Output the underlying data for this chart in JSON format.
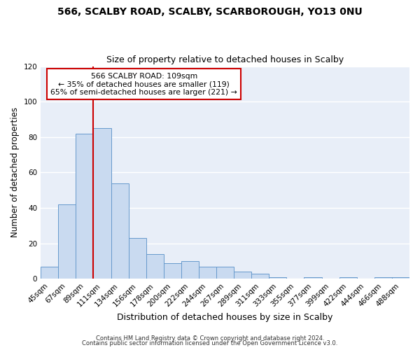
{
  "title": "566, SCALBY ROAD, SCALBY, SCARBOROUGH, YO13 0NU",
  "subtitle": "Size of property relative to detached houses in Scalby",
  "xlabel": "Distribution of detached houses by size in Scalby",
  "ylabel": "Number of detached properties",
  "bar_labels": [
    "45sqm",
    "67sqm",
    "89sqm",
    "111sqm",
    "134sqm",
    "156sqm",
    "178sqm",
    "200sqm",
    "222sqm",
    "244sqm",
    "267sqm",
    "289sqm",
    "311sqm",
    "333sqm",
    "355sqm",
    "377sqm",
    "399sqm",
    "422sqm",
    "444sqm",
    "466sqm",
    "488sqm"
  ],
  "bar_values": [
    7,
    42,
    82,
    85,
    54,
    23,
    14,
    9,
    10,
    7,
    7,
    4,
    3,
    1,
    0,
    1,
    0,
    1,
    0,
    1,
    1
  ],
  "bar_color": "#c9daf0",
  "bar_edge_color": "#6699cc",
  "ylim": [
    0,
    120
  ],
  "yticks": [
    0,
    20,
    40,
    60,
    80,
    100,
    120
  ],
  "vline_x_index": 3,
  "vline_color": "#cc0000",
  "annotation_title": "566 SCALBY ROAD: 109sqm",
  "annotation_line1": "← 35% of detached houses are smaller (119)",
  "annotation_line2": "65% of semi-detached houses are larger (221) →",
  "annotation_box_facecolor": "#ffffff",
  "annotation_box_edgecolor": "#cc0000",
  "footer_line1": "Contains HM Land Registry data © Crown copyright and database right 2024.",
  "footer_line2": "Contains public sector information licensed under the Open Government Licence v3.0.",
  "fig_facecolor": "#ffffff",
  "plot_facecolor": "#e8eef8",
  "grid_color": "#ffffff",
  "title_fontsize": 10,
  "subtitle_fontsize": 9
}
